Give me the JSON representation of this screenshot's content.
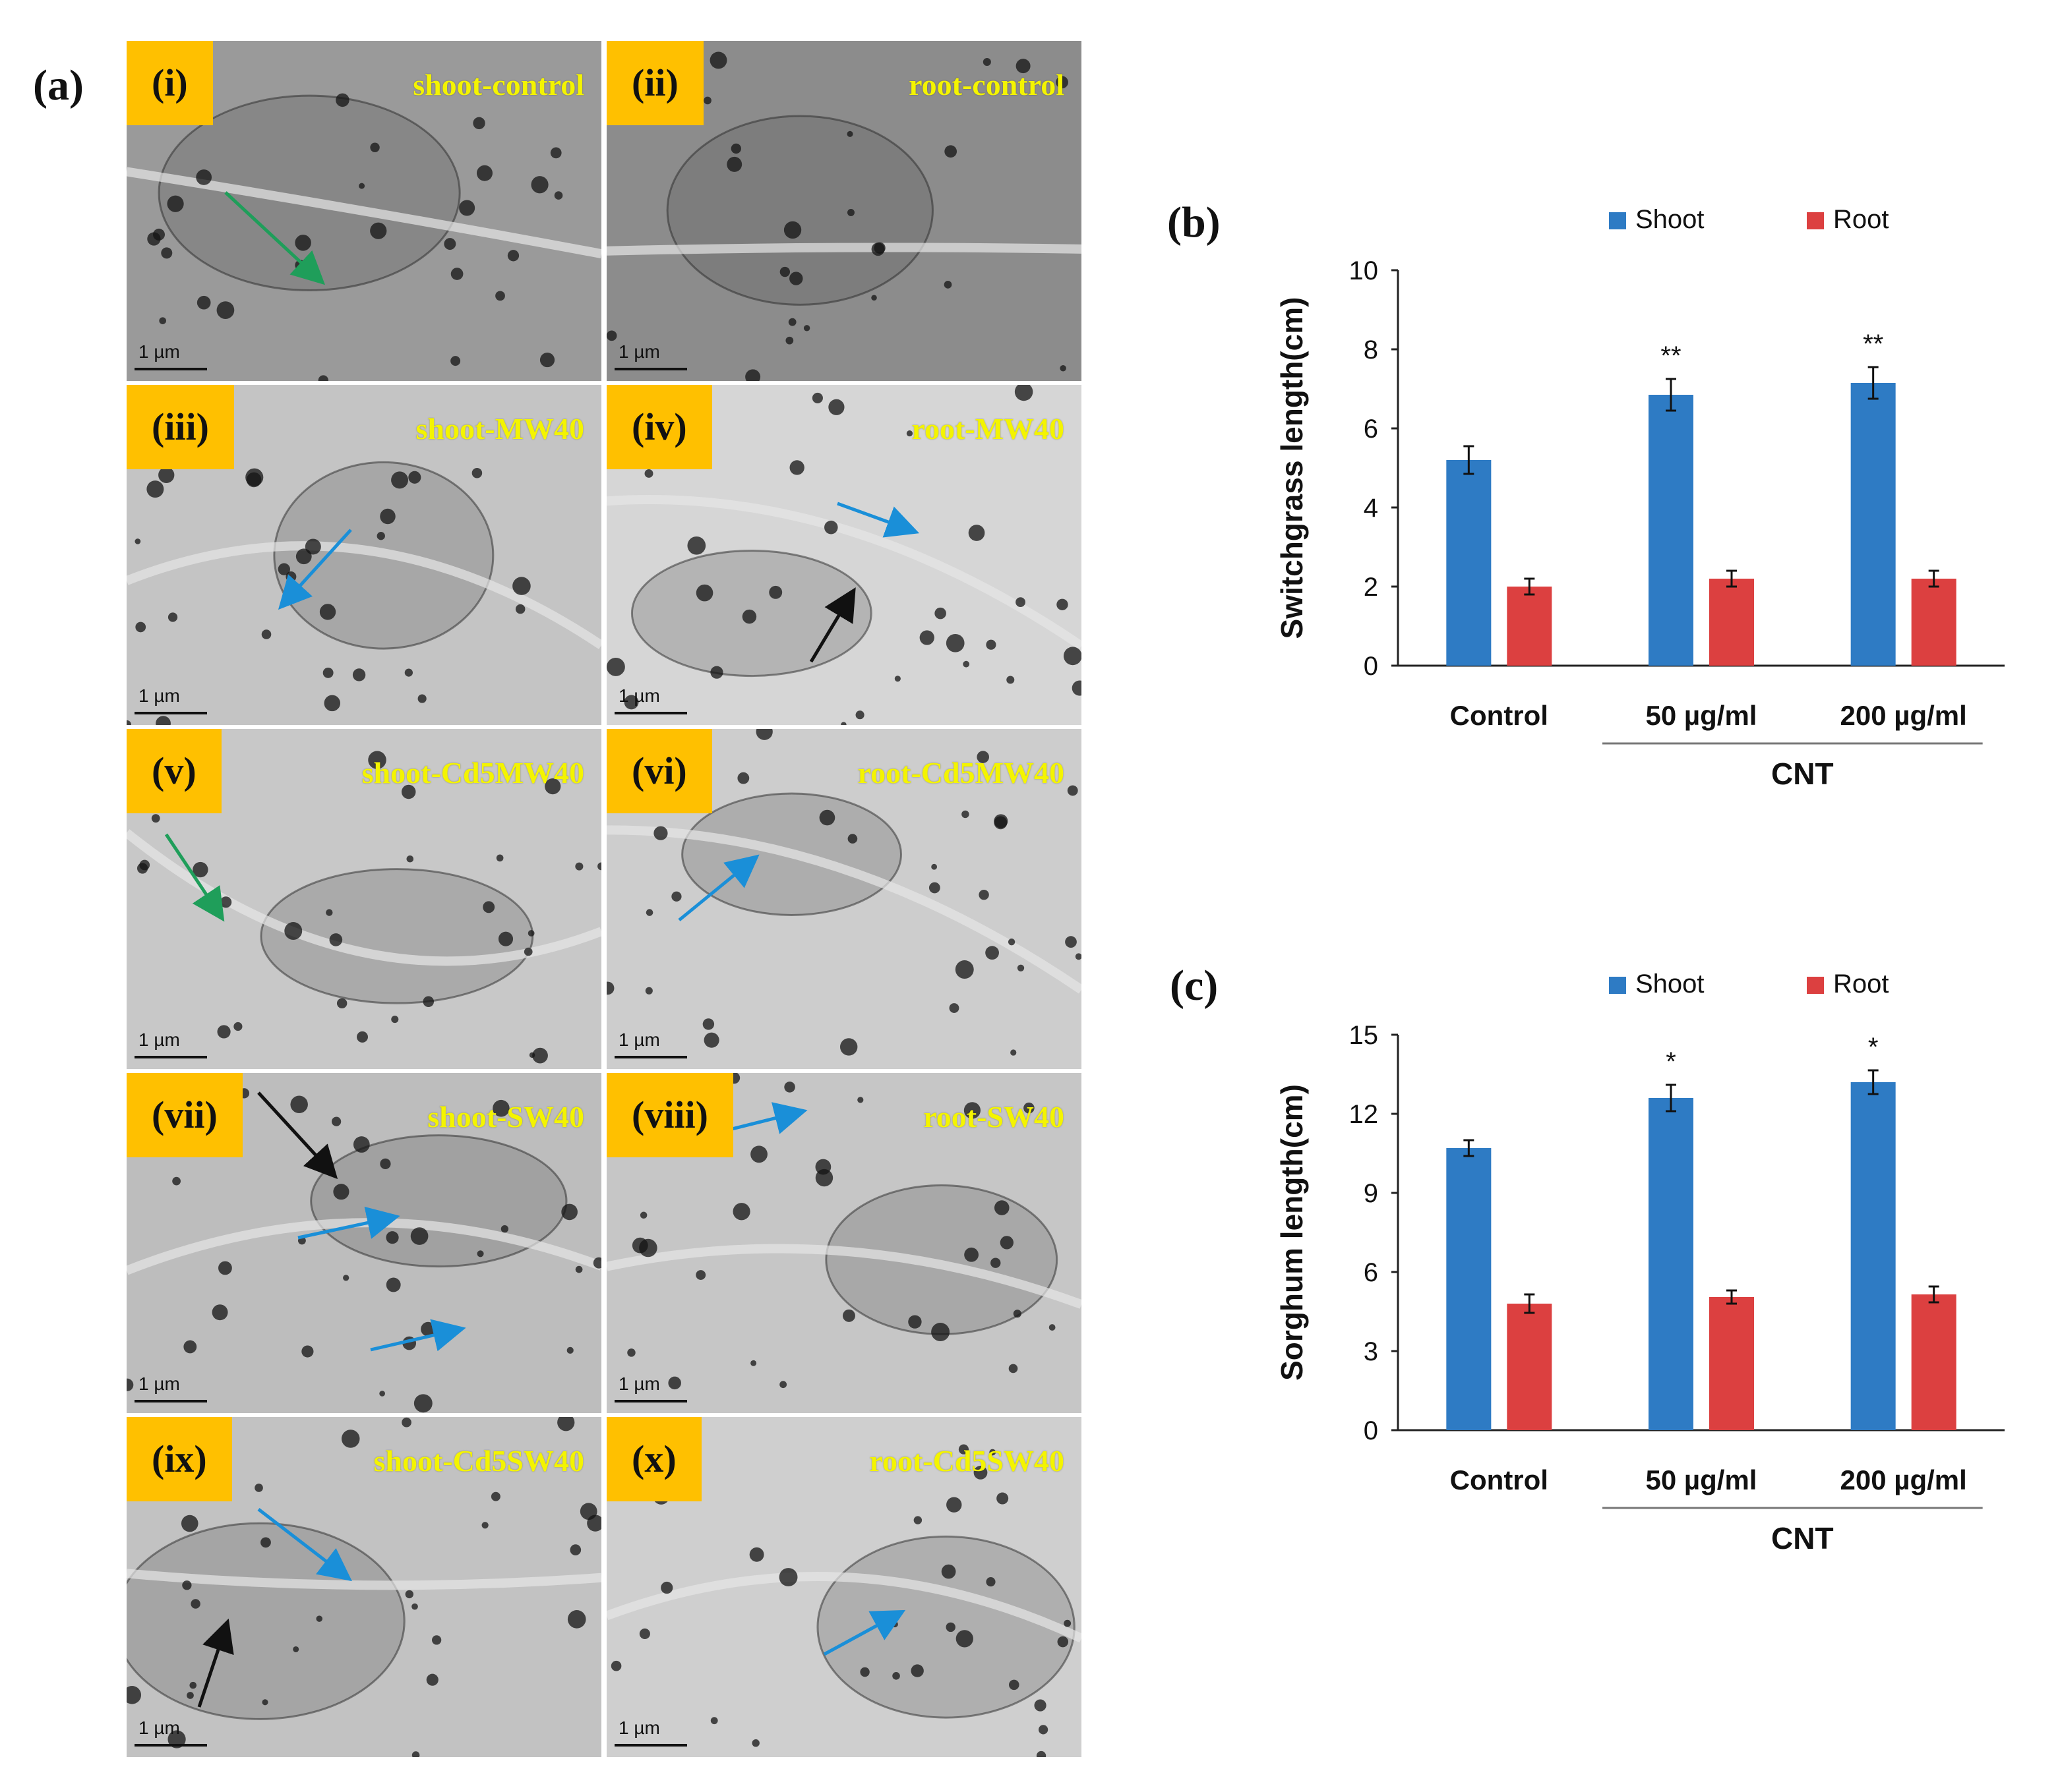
{
  "figure": {
    "panel_a_label": "(a)",
    "panel_b_label": "(b)",
    "panel_c_label": "(c)"
  },
  "micrographs": [
    {
      "badge": "(i)",
      "caption": "shoot-control",
      "scale": "1 µm",
      "tone": "#9a9a9a"
    },
    {
      "badge": "(ii)",
      "caption": "root-control",
      "scale": "1 µm",
      "tone": "#8c8c8c"
    },
    {
      "badge": "(iii)",
      "caption": "shoot-MW40",
      "scale": "1 µm",
      "tone": "#c4c4c4"
    },
    {
      "badge": "(iv)",
      "caption": "root-MW40",
      "scale": "1 µm",
      "tone": "#d6d6d6"
    },
    {
      "badge": "(v)",
      "caption": "shoot-Cd5MW40",
      "scale": "1 µm",
      "tone": "#c8c8c8"
    },
    {
      "badge": "(vi)",
      "caption": "root-Cd5MW40",
      "scale": "1 µm",
      "tone": "#cdcdcd"
    },
    {
      "badge": "(vii)",
      "caption": "shoot-SW40",
      "scale": "1 µm",
      "tone": "#bdbdbd"
    },
    {
      "badge": "(viii)",
      "caption": "root-SW40",
      "scale": "1 µm",
      "tone": "#c6c6c6"
    },
    {
      "badge": "(ix)",
      "caption": "shoot-Cd5SW40",
      "scale": "1 µm",
      "tone": "#c2c2c2"
    },
    {
      "badge": "(x)",
      "caption": "root-Cd5SW40",
      "scale": "1 µm",
      "tone": "#cfcfcf"
    }
  ],
  "arrow_colors": {
    "green": "#1f9e5a",
    "blue": "#1a8fd8",
    "black": "#111111"
  },
  "chart_data": [
    {
      "type": "bar",
      "title": "",
      "xlabel": "",
      "ylabel": "Switchgrass length(cm)",
      "categories": [
        "Control",
        "50 µg/ml",
        "200 µg/ml"
      ],
      "group_label": "CNT",
      "ylim": [
        0,
        10
      ],
      "yticks": [
        0,
        2,
        4,
        6,
        8,
        10
      ],
      "series": [
        {
          "name": "Shoot",
          "color": "#2e7bc4",
          "values": [
            5.2,
            6.85,
            7.15
          ],
          "errors": [
            0.35,
            0.4,
            0.4
          ]
        },
        {
          "name": "Root",
          "color": "#dc4040",
          "values": [
            2.0,
            2.2,
            2.2
          ],
          "errors": [
            0.2,
            0.2,
            0.2
          ]
        }
      ],
      "annotations": [
        "",
        "**",
        "**"
      ]
    },
    {
      "type": "bar",
      "title": "",
      "xlabel": "",
      "ylabel": "Sorghum length(cm)",
      "categories": [
        "Control",
        "50 µg/ml",
        "200 µg/ml"
      ],
      "group_label": "CNT",
      "ylim": [
        0,
        15
      ],
      "yticks": [
        0,
        3,
        6,
        9,
        12,
        15
      ],
      "series": [
        {
          "name": "Shoot",
          "color": "#2e7bc4",
          "values": [
            10.7,
            12.6,
            13.2
          ],
          "errors": [
            0.3,
            0.5,
            0.45
          ]
        },
        {
          "name": "Root",
          "color": "#dc4040",
          "values": [
            4.8,
            5.05,
            5.15
          ],
          "errors": [
            0.35,
            0.25,
            0.3
          ]
        }
      ],
      "annotations": [
        "",
        "*",
        "*"
      ]
    }
  ]
}
